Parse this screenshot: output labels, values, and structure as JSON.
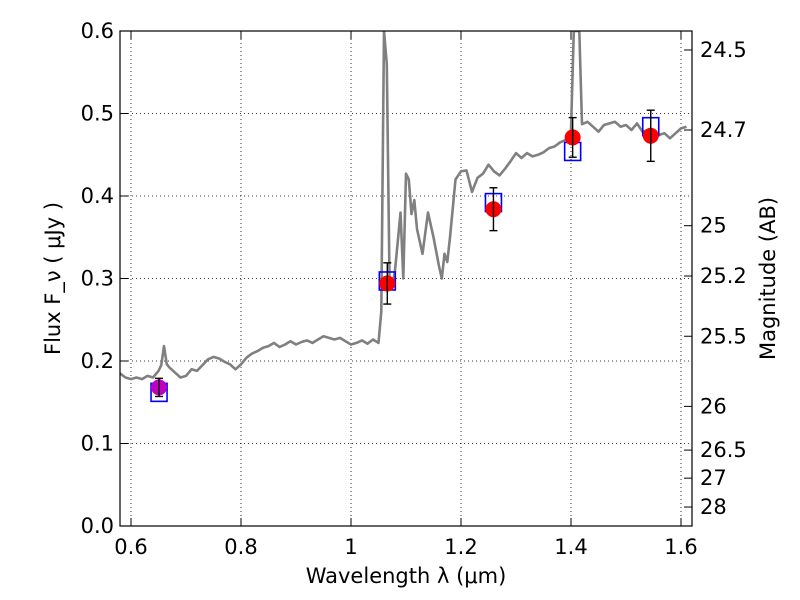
{
  "chart_data": {
    "type": "line",
    "xlabel": "Wavelength  λ (μm)",
    "ylabel": "Flux  F_ν  ( μJy )",
    "ylabel_right": "Magnitude (AB)",
    "xlim": [
      0.58,
      1.62
    ],
    "ylim": [
      0.0,
      0.6
    ],
    "grid": true,
    "x_ticks": [
      0.6,
      0.8,
      1.0,
      1.2,
      1.4,
      1.6
    ],
    "x_tick_labels": [
      "0.6",
      "0.8",
      "1",
      "1.2",
      "1.4",
      "1.6"
    ],
    "y_ticks": [
      0.0,
      0.1,
      0.2,
      0.3,
      0.4,
      0.5,
      0.6
    ],
    "y_tick_labels": [
      "0.0",
      "0.1",
      "0.2",
      "0.3",
      "0.4",
      "0.5",
      "0.6"
    ],
    "right_ticks": [
      {
        "label": "24.5",
        "flux": 0.577
      },
      {
        "label": "24.7",
        "flux": 0.48
      },
      {
        "label": "25",
        "flux": 0.364
      },
      {
        "label": "25.2",
        "flux": 0.303
      },
      {
        "label": "25.5",
        "flux": 0.23
      },
      {
        "label": "26",
        "flux": 0.145
      },
      {
        "label": "26.5",
        "flux": 0.092
      },
      {
        "label": "27",
        "flux": 0.058
      },
      {
        "label": "28",
        "flux": 0.023
      }
    ],
    "colors": {
      "template": "#808080",
      "model_box": "#0000ff",
      "observed": "#ff0000",
      "first_observed": "#bf00bf",
      "error_bar": "#000000"
    },
    "series": [
      {
        "kind": "template_spectrum",
        "x": [
          0.58,
          0.59,
          0.6,
          0.61,
          0.62,
          0.63,
          0.64,
          0.65,
          0.655,
          0.66,
          0.665,
          0.67,
          0.68,
          0.69,
          0.7,
          0.71,
          0.72,
          0.73,
          0.74,
          0.75,
          0.76,
          0.77,
          0.78,
          0.79,
          0.8,
          0.81,
          0.82,
          0.83,
          0.84,
          0.85,
          0.86,
          0.87,
          0.88,
          0.89,
          0.9,
          0.91,
          0.92,
          0.93,
          0.94,
          0.95,
          0.96,
          0.97,
          0.98,
          0.99,
          1.0,
          1.01,
          1.02,
          1.03,
          1.04,
          1.05,
          1.055,
          1.06,
          1.065,
          1.07,
          1.075,
          1.08,
          1.085,
          1.09,
          1.095,
          1.1,
          1.105,
          1.11,
          1.115,
          1.12,
          1.13,
          1.14,
          1.15,
          1.16,
          1.165,
          1.17,
          1.175,
          1.18,
          1.19,
          1.2,
          1.21,
          1.22,
          1.23,
          1.24,
          1.25,
          1.26,
          1.27,
          1.28,
          1.29,
          1.3,
          1.31,
          1.32,
          1.33,
          1.34,
          1.35,
          1.36,
          1.37,
          1.38,
          1.39,
          1.395,
          1.4,
          1.405,
          1.41,
          1.415,
          1.42,
          1.43,
          1.44,
          1.45,
          1.46,
          1.47,
          1.48,
          1.49,
          1.5,
          1.51,
          1.52,
          1.53,
          1.54,
          1.55,
          1.56,
          1.57,
          1.58,
          1.59,
          1.6,
          1.61
        ],
        "y": [
          0.185,
          0.18,
          0.178,
          0.18,
          0.178,
          0.182,
          0.18,
          0.188,
          0.195,
          0.218,
          0.196,
          0.192,
          0.186,
          0.18,
          0.182,
          0.19,
          0.188,
          0.195,
          0.202,
          0.205,
          0.203,
          0.199,
          0.196,
          0.19,
          0.196,
          0.204,
          0.209,
          0.212,
          0.216,
          0.218,
          0.222,
          0.217,
          0.22,
          0.224,
          0.22,
          0.223,
          0.225,
          0.222,
          0.226,
          0.23,
          0.228,
          0.226,
          0.228,
          0.224,
          0.22,
          0.222,
          0.225,
          0.221,
          0.226,
          0.222,
          0.26,
          0.6,
          0.56,
          0.3,
          0.29,
          0.31,
          0.345,
          0.38,
          0.3,
          0.427,
          0.42,
          0.378,
          0.395,
          0.36,
          0.33,
          0.38,
          0.35,
          0.315,
          0.3,
          0.33,
          0.32,
          0.35,
          0.42,
          0.43,
          0.431,
          0.405,
          0.422,
          0.427,
          0.438,
          0.43,
          0.425,
          0.433,
          0.442,
          0.452,
          0.446,
          0.452,
          0.448,
          0.45,
          0.453,
          0.458,
          0.46,
          0.465,
          0.468,
          0.47,
          0.48,
          0.6,
          0.6,
          0.6,
          0.487,
          0.49,
          0.484,
          0.478,
          0.486,
          0.488,
          0.49,
          0.484,
          0.486,
          0.48,
          0.488,
          0.478,
          0.48,
          0.472,
          0.474,
          0.476,
          0.47,
          0.476,
          0.482,
          0.484
        ]
      },
      {
        "kind": "model_points",
        "x": [
          0.651,
          1.066,
          1.259,
          1.403,
          1.545
        ],
        "y": [
          0.162,
          0.297,
          0.392,
          0.454,
          0.484
        ]
      },
      {
        "kind": "observed_points",
        "x": [
          0.651,
          1.066,
          1.259,
          1.403,
          1.545
        ],
        "y": [
          0.168,
          0.294,
          0.384,
          0.471,
          0.473
        ],
        "err": [
          0.011,
          0.025,
          0.026,
          0.024,
          0.031
        ]
      }
    ]
  }
}
